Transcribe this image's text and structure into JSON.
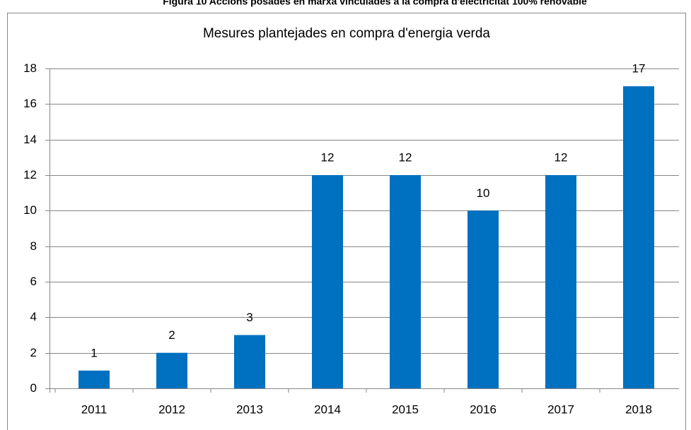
{
  "caption": "Figura 10 Accions posades en marxa vinculades a la compra d'electricitat 100% renovable",
  "chart_data": {
    "type": "bar",
    "title": "Mesures plantejades en compra d'energia verda",
    "categories": [
      "2011",
      "2012",
      "2013",
      "2014",
      "2015",
      "2016",
      "2017",
      "2018"
    ],
    "values": [
      1,
      2,
      3,
      12,
      12,
      10,
      12,
      17
    ],
    "color": "#0070c0",
    "ylim": [
      0,
      18
    ],
    "yticks": [
      0,
      2,
      4,
      6,
      8,
      10,
      12,
      14,
      16,
      18
    ],
    "grid": true
  }
}
